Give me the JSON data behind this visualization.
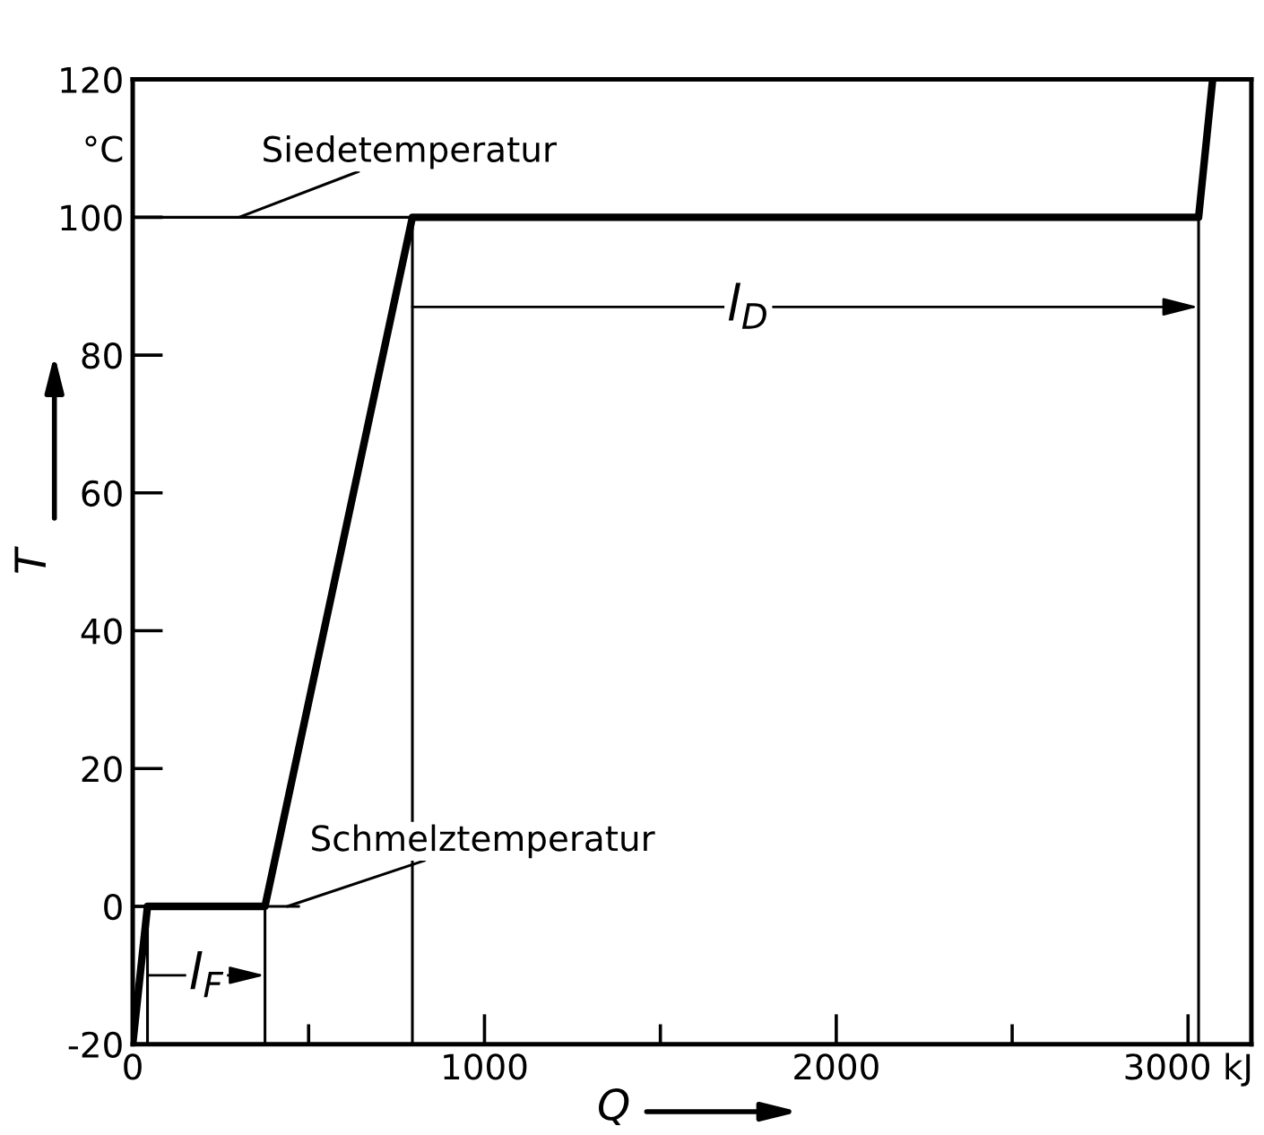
{
  "chart_data": {
    "type": "line",
    "xlabel": "Q",
    "ylabel": "T",
    "x": [
      0,
      42,
      376,
      795,
      3030,
      3070
    ],
    "series": [
      {
        "color": "#000000",
        "values": [
          -20,
          0,
          0,
          100,
          100,
          120
        ]
      }
    ],
    "xlim": [
      0,
      3180
    ],
    "ylim": [
      -20,
      120
    ],
    "xticks": [
      0,
      {
        "value": 500,
        "label": null
      },
      1000,
      {
        "value": 1500,
        "label": null
      },
      2000,
      {
        "value": 2500,
        "label": null
      },
      {
        "value": 3000,
        "label": "3000 kJ"
      }
    ],
    "yticks": [
      -20,
      0,
      20,
      40,
      60,
      80,
      100,
      {
        "value": 110,
        "label": "°C"
      },
      120
    ],
    "grid": false,
    "legend": false,
    "marker": "none",
    "line_style": "solid",
    "ref_lines": [
      {
        "axis": "y",
        "value": 100,
        "label": "Siedetemperatur",
        "color": "#000000"
      },
      {
        "axis": "y",
        "value": 0,
        "label": "Schmelztemperatur",
        "color": "#000000"
      },
      {
        "axis": "x",
        "value": 42,
        "color": "#000000"
      },
      {
        "axis": "x",
        "value": 376,
        "color": "#000000"
      },
      {
        "axis": "x",
        "value": 795,
        "color": "#000000"
      },
      {
        "axis": "x",
        "value": 3030,
        "color": "#000000"
      }
    ],
    "annotations": [
      {
        "text": "l$_{F}$",
        "x": 210,
        "y": -10
      },
      {
        "text": "l$_{D}$",
        "x": 1750,
        "y": 87
      }
    ]
  }
}
